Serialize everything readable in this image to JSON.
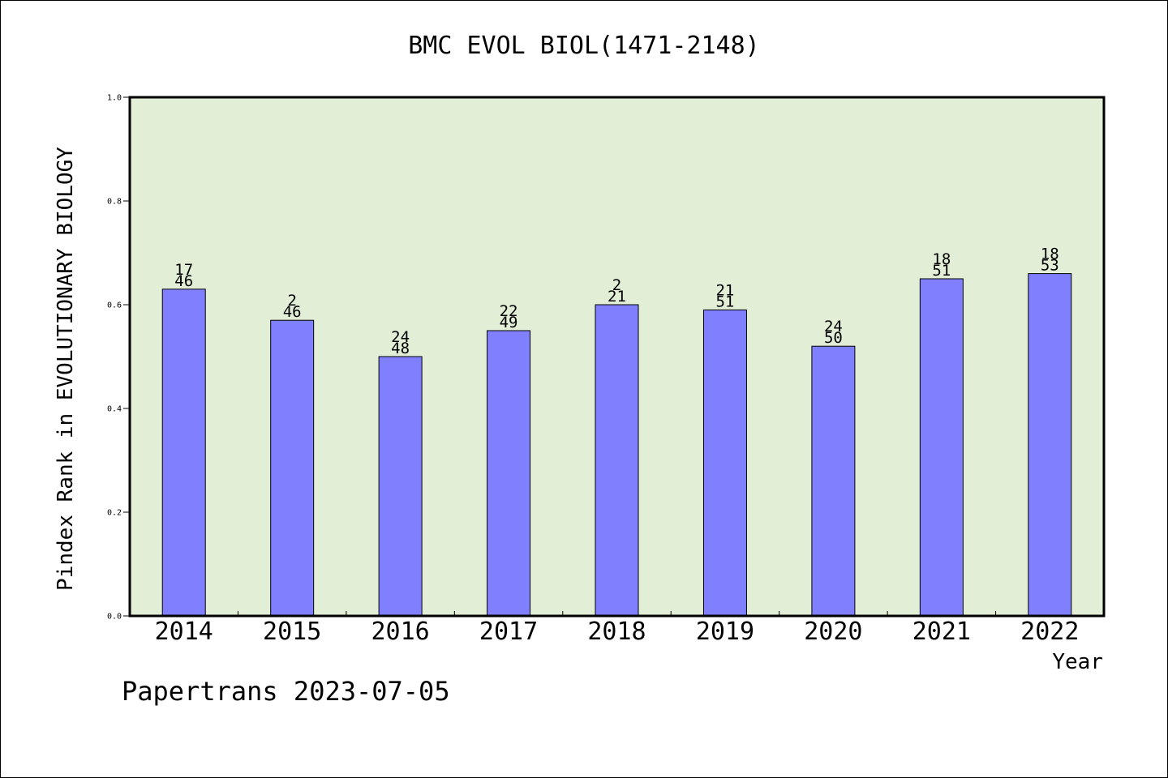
{
  "chart_data": {
    "type": "bar",
    "title": "BMC EVOL BIOL(1471-2148)",
    "xlabel": "Year",
    "ylabel": "Pindex Rank in EVOLUTIONARY BIOLOGY",
    "ylim": [
      0,
      1.0
    ],
    "yticks": [
      "0.0",
      "0.2",
      "0.4",
      "0.6",
      "0.8",
      "1.0"
    ],
    "categories": [
      "2014",
      "2015",
      "2016",
      "2017",
      "2018",
      "2019",
      "2020",
      "2021",
      "2022"
    ],
    "values": [
      0.63,
      0.57,
      0.5,
      0.55,
      0.6,
      0.59,
      0.52,
      0.65,
      0.66
    ],
    "labels_top": [
      "17",
      "2",
      "24",
      "22",
      "2",
      "21",
      "24",
      "18",
      "18"
    ],
    "labels_bottom": [
      "46",
      "46",
      "48",
      "49",
      "21",
      "51",
      "50",
      "51",
      "53"
    ],
    "footer": "Papertrans 2023-07-05",
    "colors": {
      "plot_background": "#e2efd6",
      "bar_fill": "#8080ff",
      "axis": "#000000"
    }
  }
}
